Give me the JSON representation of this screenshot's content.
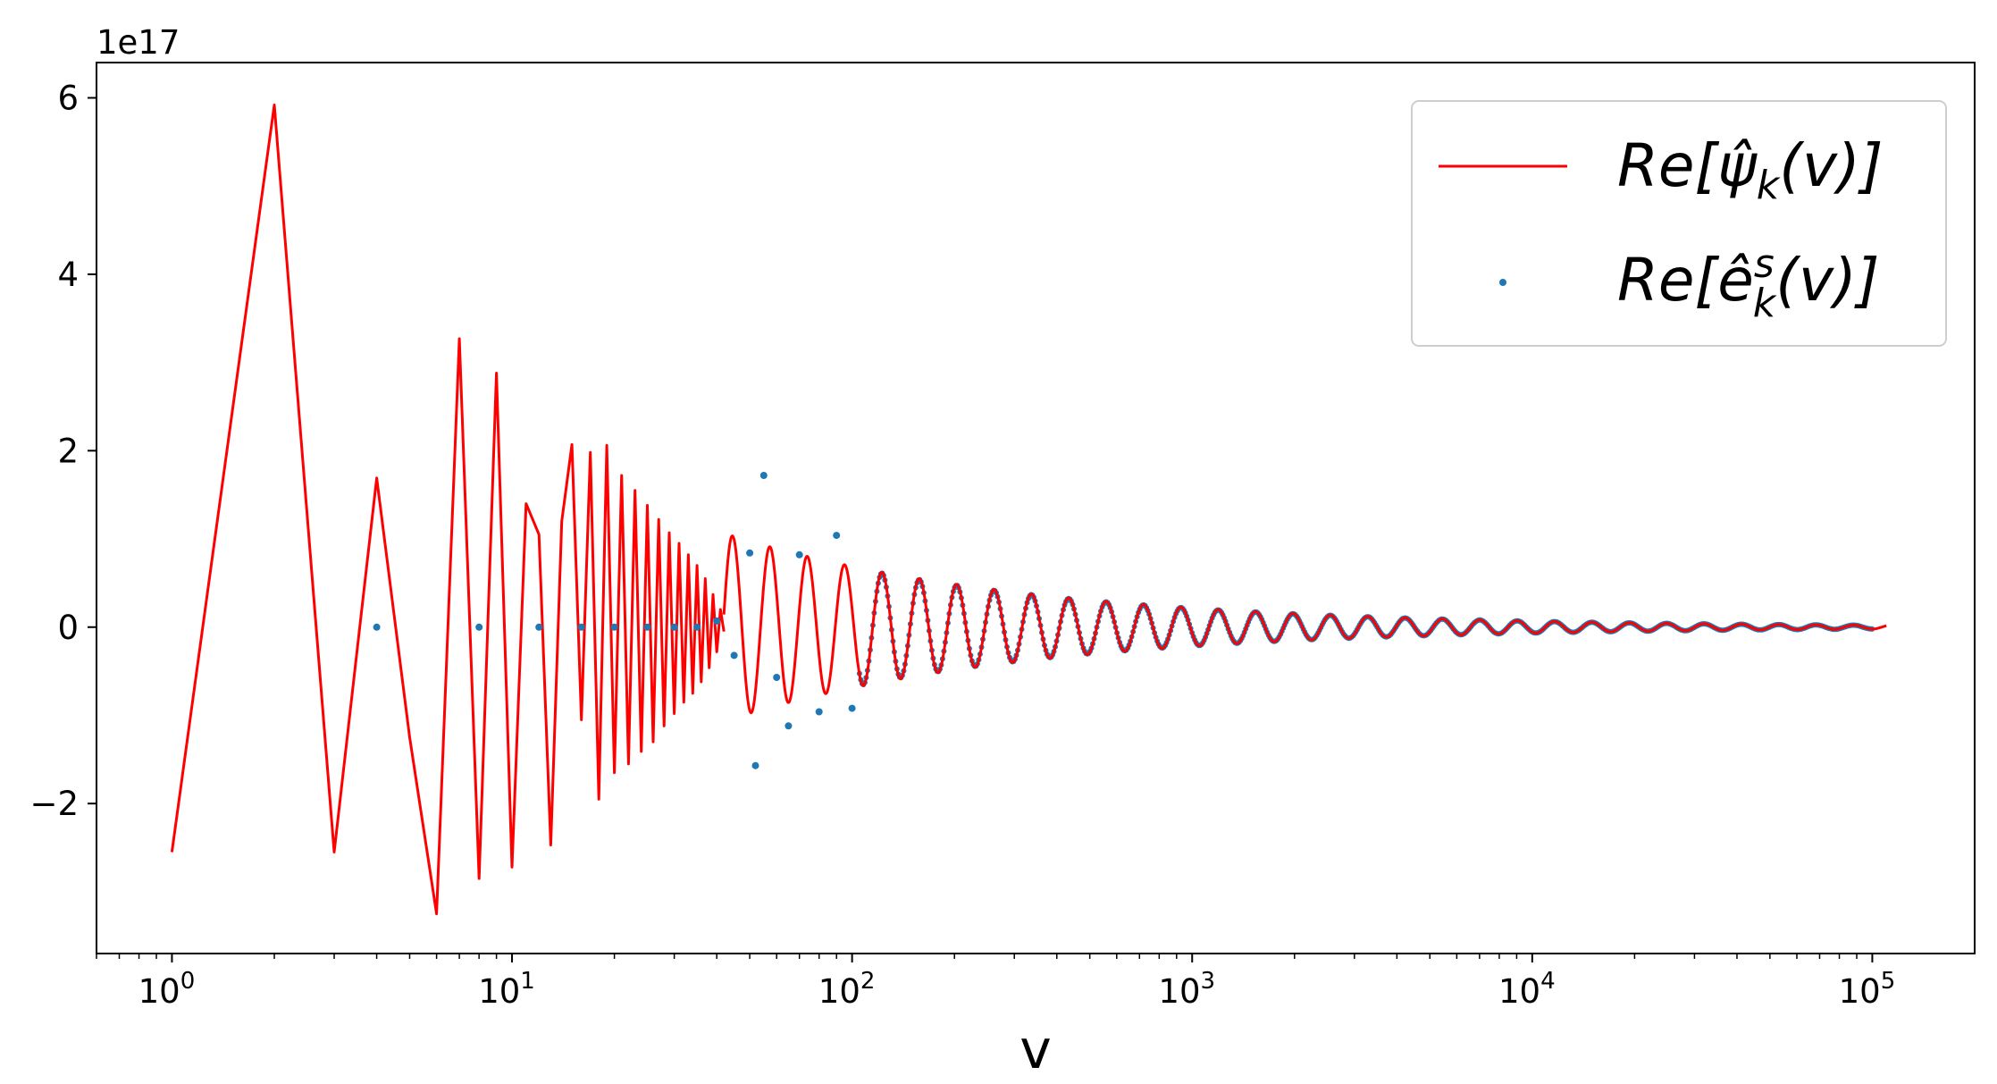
{
  "chart_data": {
    "type": "line",
    "title": "",
    "xlabel": "v",
    "ylabel": "",
    "xscale": "log",
    "xlim": [
      0.6,
      200000
    ],
    "ylim": [
      -3.7e+17,
      6.4e+17
    ],
    "offset_text": "1e17",
    "grid": false,
    "legend_position": "upper right",
    "x_ticks": [
      {
        "value": 1,
        "label": "10",
        "exp": "0"
      },
      {
        "value": 10,
        "label": "10",
        "exp": "1"
      },
      {
        "value": 100,
        "label": "10",
        "exp": "2"
      },
      {
        "value": 1000,
        "label": "10",
        "exp": "3"
      },
      {
        "value": 10000,
        "label": "10",
        "exp": "4"
      },
      {
        "value": 100000,
        "label": "10",
        "exp": "5"
      }
    ],
    "y_ticks": [
      {
        "value": -2e+17,
        "label": "−2"
      },
      {
        "value": 0,
        "label": "0"
      },
      {
        "value": 2e+17,
        "label": "2"
      },
      {
        "value": 4e+17,
        "label": "4"
      },
      {
        "value": 6e+17,
        "label": "6"
      }
    ],
    "series": [
      {
        "name": "Re[ψ̂k(v)]",
        "legend_label": {
          "base": "Re[",
          "glyph": "ψ̂",
          "sub": "k",
          "tail": "(v)]"
        },
        "color": "#ff0000",
        "style": "line",
        "x": [
          1,
          2,
          3,
          4,
          5,
          6,
          7,
          8,
          9,
          10,
          11,
          12,
          13,
          14,
          15,
          16,
          17,
          18,
          19,
          20,
          21,
          22,
          23,
          24,
          25,
          26,
          27,
          28,
          29,
          30,
          31,
          32,
          33,
          34,
          35,
          36,
          37,
          38,
          39,
          40,
          41,
          42
        ],
        "y": [
          -2.55e+17,
          5.92e+17,
          -2.55e+17,
          1.69e+17,
          -1.25e+17,
          -3.25e+17,
          3.27e+17,
          -2.85e+17,
          2.88e+17,
          -2.72e+17,
          1.4e+17,
          1.05e+17,
          -2.47e+17,
          1.2e+17,
          2.07e+17,
          -1.05e+17,
          1.98e+17,
          -1.95e+17,
          2.06e+17,
          -1.65e+17,
          1.72e+17,
          -1.55e+17,
          1.55e+17,
          -1.41e+17,
          1.38e+17,
          -1.3e+17,
          1.22e+17,
          -1.12e+17,
          1.07e+17,
          -9.8e+16,
          9.5e+16,
          -8.5e+16,
          8.2e+16,
          -7.5e+16,
          7e+16,
          -6.2e+16,
          5.5e+16,
          -4.6e+16,
          3.7e+16,
          -2.8e+16,
          2e+16,
          -5000000000000000.0
        ]
      },
      {
        "name": "Re[ê^s_k(v)]",
        "legend_label": {
          "base": "Re[",
          "glyph": "ê",
          "sup": "s",
          "sub": "k",
          "tail": "(v)]"
        },
        "color": "#1f77b4",
        "style": "scatter",
        "x": [
          4,
          8,
          12,
          16,
          20,
          25,
          30,
          35,
          40,
          45,
          50,
          52,
          55,
          60,
          65,
          70,
          80,
          90,
          100
        ],
        "y": [
          0,
          0,
          0,
          0,
          0,
          0,
          0,
          0,
          7000000000000000.0,
          -3.2e+16,
          8.4e+16,
          -1.57e+17,
          1.72e+17,
          -5.7e+16,
          -1.12e+17,
          8.2e+16,
          -9.6e+16,
          1.04e+17,
          -9.2e+16
        ]
      }
    ]
  }
}
